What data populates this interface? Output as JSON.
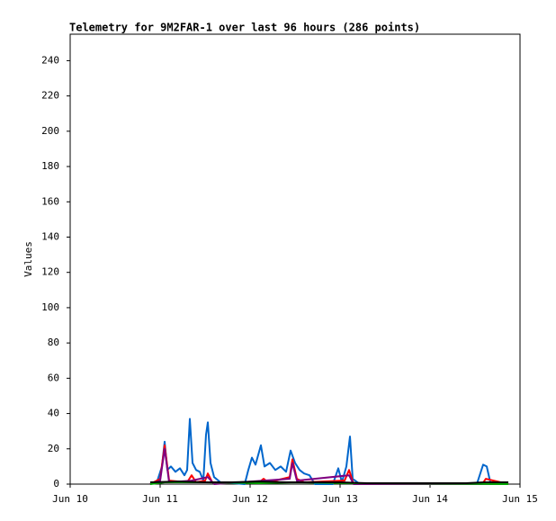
{
  "chart_data": {
    "type": "line",
    "title": "Telemetry for 9M2FAR-1 over last 96 hours (286 points)",
    "y_label": "Values",
    "xlim": [
      10,
      15
    ],
    "xticks": [
      {
        "value": 10,
        "label": "Jun 10"
      },
      {
        "value": 11,
        "label": "Jun 11"
      },
      {
        "value": 12,
        "label": "Jun 12"
      },
      {
        "value": 13,
        "label": "Jun 13"
      },
      {
        "value": 14,
        "label": "Jun 14"
      },
      {
        "value": 15,
        "label": "Jun 15"
      }
    ],
    "ylim": [
      0,
      255
    ],
    "yticks": [
      0,
      20,
      40,
      60,
      80,
      100,
      120,
      140,
      160,
      180,
      200,
      220,
      240
    ],
    "grid": false,
    "series": [
      {
        "color": "#0066cc",
        "x": [
          10.89,
          10.97,
          11.02,
          11.05,
          11.08,
          11.12,
          11.17,
          11.22,
          11.27,
          11.3,
          11.33,
          11.36,
          11.4,
          11.44,
          11.48,
          11.51,
          11.53,
          11.56,
          11.6,
          11.67,
          11.82,
          11.94,
          11.98,
          12.02,
          12.06,
          12.12,
          12.16,
          12.22,
          12.28,
          12.34,
          12.4,
          12.45,
          12.5,
          12.55,
          12.6,
          12.66,
          12.72,
          12.92,
          12.98,
          13.02,
          13.07,
          13.11,
          13.14,
          13.22,
          14.52,
          14.59,
          14.63,
          14.67,
          14.87
        ],
        "values": [
          0,
          2,
          10,
          24,
          8,
          10,
          7,
          9,
          5,
          8,
          37,
          12,
          8,
          7,
          2,
          28,
          35,
          12,
          4,
          1,
          0.5,
          0,
          8,
          15,
          11,
          22,
          10,
          12,
          8,
          10,
          7,
          19,
          12,
          8,
          6,
          5,
          0,
          0,
          9,
          1,
          10,
          27,
          3,
          0,
          0,
          11,
          10,
          1,
          1
        ]
      },
      {
        "color": "#ff0000",
        "x": [
          10.89,
          11.0,
          11.05,
          11.1,
          11.3,
          11.35,
          11.4,
          11.5,
          11.53,
          11.58,
          12.1,
          12.15,
          12.2,
          12.44,
          12.47,
          12.52,
          12.6,
          13.05,
          13.1,
          13.15,
          14.58,
          14.62,
          14.87
        ],
        "values": [
          0,
          3,
          22,
          2,
          1,
          5,
          1,
          2,
          6,
          1,
          1,
          3,
          1,
          4,
          14,
          3,
          1,
          2,
          8,
          0,
          0,
          3,
          0
        ]
      },
      {
        "color": "#800080",
        "x": [
          10.89,
          11.0,
          11.05,
          11.1,
          11.35,
          11.53,
          11.6,
          12.44,
          12.47,
          12.52,
          13.1,
          13.15,
          14.87
        ],
        "values": [
          0,
          2,
          20,
          1,
          2,
          4,
          0,
          3,
          12,
          2,
          5,
          0,
          0
        ]
      },
      {
        "color": "#00aa00",
        "x": [
          10.89,
          11.05,
          11.5,
          12.1,
          12.5,
          13.1,
          14.87
        ],
        "values": [
          0,
          1,
          1,
          0.5,
          1,
          0.5,
          0
        ]
      },
      {
        "color": "#000000",
        "x": [
          10.89,
          11.2,
          11.5,
          11.8,
          12.1,
          12.4,
          12.7,
          13.0,
          13.3,
          13.6,
          14.0,
          14.4,
          14.6,
          14.87
        ],
        "values": [
          1,
          1.5,
          1,
          1,
          1.5,
          1,
          1,
          1,
          0.5,
          0.5,
          0.5,
          0.5,
          1,
          1
        ]
      }
    ]
  }
}
